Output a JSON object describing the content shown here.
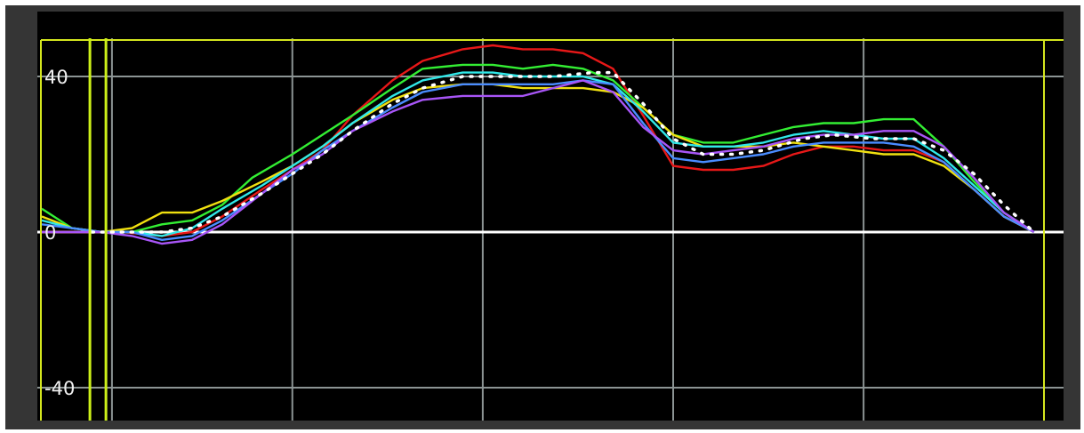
{
  "chart_data": {
    "type": "line",
    "title": "",
    "xlabel": "",
    "ylabel": "",
    "x_range": [
      0,
      100
    ],
    "ylim": [
      -50,
      50
    ],
    "y_ticks": [
      {
        "value": 40,
        "label": "40"
      },
      {
        "value": 0,
        "label": "0"
      },
      {
        "value": -40,
        "label": "-40"
      }
    ],
    "x_gridlines": [
      7,
      25,
      44,
      63,
      82
    ],
    "grid": true,
    "legend": "none",
    "colors": {
      "background": "#000000",
      "grid": "#8c9494",
      "zero_line": "#ffffff",
      "frame": "#d4e61e",
      "markers": "#ccf019"
    },
    "markers": [
      4.8,
      6.4
    ],
    "mean_trace": {
      "color": "#ffffff",
      "style": "dotted",
      "points": [
        [
          5,
          0
        ],
        [
          8,
          0
        ],
        [
          12,
          0
        ],
        [
          15,
          1
        ],
        [
          18,
          4
        ],
        [
          22,
          10
        ],
        [
          25,
          15
        ],
        [
          28,
          20
        ],
        [
          31,
          26
        ],
        [
          35,
          33
        ],
        [
          38,
          37
        ],
        [
          42,
          40
        ],
        [
          47,
          40
        ],
        [
          51,
          40
        ],
        [
          55,
          41
        ],
        [
          57,
          41
        ],
        [
          60,
          33
        ],
        [
          63,
          24
        ],
        [
          66,
          20
        ],
        [
          69,
          20
        ],
        [
          72,
          21
        ],
        [
          76,
          24
        ],
        [
          79,
          25
        ],
        [
          83,
          24
        ],
        [
          87,
          24
        ],
        [
          90,
          21
        ],
        [
          93,
          15
        ],
        [
          96,
          7
        ],
        [
          99,
          0
        ]
      ]
    },
    "series": [
      {
        "color": "#e81818",
        "points": [
          [
            0,
            0
          ],
          [
            4,
            0
          ],
          [
            8,
            0
          ],
          [
            12,
            -1
          ],
          [
            15,
            0
          ],
          [
            18,
            4
          ],
          [
            22,
            11
          ],
          [
            25,
            16
          ],
          [
            28,
            21
          ],
          [
            31,
            30
          ],
          [
            35,
            39
          ],
          [
            38,
            44
          ],
          [
            42,
            47
          ],
          [
            45,
            48
          ],
          [
            48,
            47
          ],
          [
            51,
            47
          ],
          [
            54,
            46
          ],
          [
            57,
            42
          ],
          [
            60,
            30
          ],
          [
            63,
            17
          ],
          [
            66,
            16
          ],
          [
            69,
            16
          ],
          [
            72,
            17
          ],
          [
            75,
            20
          ],
          [
            78,
            22
          ],
          [
            81,
            22
          ],
          [
            84,
            21
          ],
          [
            87,
            21
          ],
          [
            90,
            18
          ],
          [
            93,
            11
          ],
          [
            96,
            4
          ],
          [
            99,
            0
          ]
        ]
      },
      {
        "color": "#33ee33",
        "points": [
          [
            0,
            6
          ],
          [
            3,
            1
          ],
          [
            6,
            0
          ],
          [
            9,
            0
          ],
          [
            12,
            2
          ],
          [
            15,
            3
          ],
          [
            18,
            7
          ],
          [
            21,
            14
          ],
          [
            25,
            20
          ],
          [
            28,
            25
          ],
          [
            31,
            30
          ],
          [
            35,
            37
          ],
          [
            38,
            42
          ],
          [
            42,
            43
          ],
          [
            45,
            43
          ],
          [
            48,
            42
          ],
          [
            51,
            43
          ],
          [
            54,
            42
          ],
          [
            57,
            39
          ],
          [
            60,
            32
          ],
          [
            63,
            25
          ],
          [
            66,
            23
          ],
          [
            69,
            23
          ],
          [
            72,
            25
          ],
          [
            75,
            27
          ],
          [
            78,
            28
          ],
          [
            81,
            28
          ],
          [
            84,
            29
          ],
          [
            87,
            29
          ],
          [
            90,
            22
          ],
          [
            93,
            13
          ],
          [
            96,
            5
          ],
          [
            99,
            0
          ]
        ]
      },
      {
        "color": "#f0e010",
        "points": [
          [
            0,
            4
          ],
          [
            3,
            1
          ],
          [
            6,
            0
          ],
          [
            9,
            1
          ],
          [
            12,
            5
          ],
          [
            15,
            5
          ],
          [
            18,
            8
          ],
          [
            22,
            13
          ],
          [
            25,
            17
          ],
          [
            28,
            22
          ],
          [
            31,
            28
          ],
          [
            35,
            34
          ],
          [
            38,
            37
          ],
          [
            42,
            38
          ],
          [
            45,
            38
          ],
          [
            48,
            37
          ],
          [
            51,
            37
          ],
          [
            54,
            37
          ],
          [
            57,
            36
          ],
          [
            60,
            32
          ],
          [
            63,
            25
          ],
          [
            66,
            22
          ],
          [
            69,
            22
          ],
          [
            72,
            22
          ],
          [
            75,
            23
          ],
          [
            78,
            22
          ],
          [
            81,
            21
          ],
          [
            84,
            20
          ],
          [
            87,
            20
          ],
          [
            90,
            17
          ],
          [
            93,
            11
          ],
          [
            96,
            4
          ],
          [
            99,
            0
          ]
        ]
      },
      {
        "color": "#30e8e8",
        "points": [
          [
            0,
            3
          ],
          [
            3,
            1
          ],
          [
            6,
            0
          ],
          [
            9,
            0
          ],
          [
            12,
            -1
          ],
          [
            15,
            1
          ],
          [
            18,
            6
          ],
          [
            22,
            12
          ],
          [
            25,
            17
          ],
          [
            28,
            22
          ],
          [
            31,
            28
          ],
          [
            35,
            35
          ],
          [
            38,
            39
          ],
          [
            42,
            41
          ],
          [
            45,
            41
          ],
          [
            48,
            40
          ],
          [
            51,
            40
          ],
          [
            54,
            40
          ],
          [
            57,
            38
          ],
          [
            60,
            31
          ],
          [
            63,
            23
          ],
          [
            66,
            22
          ],
          [
            69,
            22
          ],
          [
            72,
            23
          ],
          [
            75,
            25
          ],
          [
            78,
            26
          ],
          [
            81,
            25
          ],
          [
            84,
            24
          ],
          [
            87,
            24
          ],
          [
            90,
            19
          ],
          [
            93,
            12
          ],
          [
            96,
            5
          ],
          [
            99,
            0
          ]
        ]
      },
      {
        "color": "#4a8cff",
        "points": [
          [
            0,
            2
          ],
          [
            3,
            1
          ],
          [
            6,
            0
          ],
          [
            9,
            0
          ],
          [
            12,
            -2
          ],
          [
            15,
            -1
          ],
          [
            18,
            3
          ],
          [
            22,
            10
          ],
          [
            25,
            15
          ],
          [
            28,
            21
          ],
          [
            31,
            26
          ],
          [
            35,
            32
          ],
          [
            38,
            36
          ],
          [
            42,
            38
          ],
          [
            45,
            38
          ],
          [
            48,
            38
          ],
          [
            51,
            38
          ],
          [
            54,
            39
          ],
          [
            57,
            38
          ],
          [
            60,
            28
          ],
          [
            63,
            19
          ],
          [
            66,
            18
          ],
          [
            69,
            19
          ],
          [
            72,
            20
          ],
          [
            75,
            22
          ],
          [
            78,
            23
          ],
          [
            81,
            23
          ],
          [
            84,
            23
          ],
          [
            87,
            22
          ],
          [
            90,
            18
          ],
          [
            93,
            11
          ],
          [
            96,
            4
          ],
          [
            99,
            0
          ]
        ]
      },
      {
        "color": "#a855f7",
        "points": [
          [
            0,
            0
          ],
          [
            3,
            0
          ],
          [
            6,
            0
          ],
          [
            9,
            -1
          ],
          [
            12,
            -3
          ],
          [
            15,
            -2
          ],
          [
            18,
            2
          ],
          [
            22,
            10
          ],
          [
            25,
            16
          ],
          [
            28,
            20
          ],
          [
            31,
            26
          ],
          [
            35,
            31
          ],
          [
            38,
            34
          ],
          [
            42,
            35
          ],
          [
            45,
            35
          ],
          [
            48,
            35
          ],
          [
            51,
            37
          ],
          [
            54,
            39
          ],
          [
            57,
            36
          ],
          [
            60,
            27
          ],
          [
            63,
            21
          ],
          [
            66,
            20
          ],
          [
            69,
            21
          ],
          [
            72,
            22
          ],
          [
            75,
            24
          ],
          [
            78,
            25
          ],
          [
            81,
            25
          ],
          [
            84,
            26
          ],
          [
            87,
            26
          ],
          [
            90,
            22
          ],
          [
            93,
            14
          ],
          [
            96,
            5
          ],
          [
            99,
            0
          ]
        ]
      }
    ]
  }
}
